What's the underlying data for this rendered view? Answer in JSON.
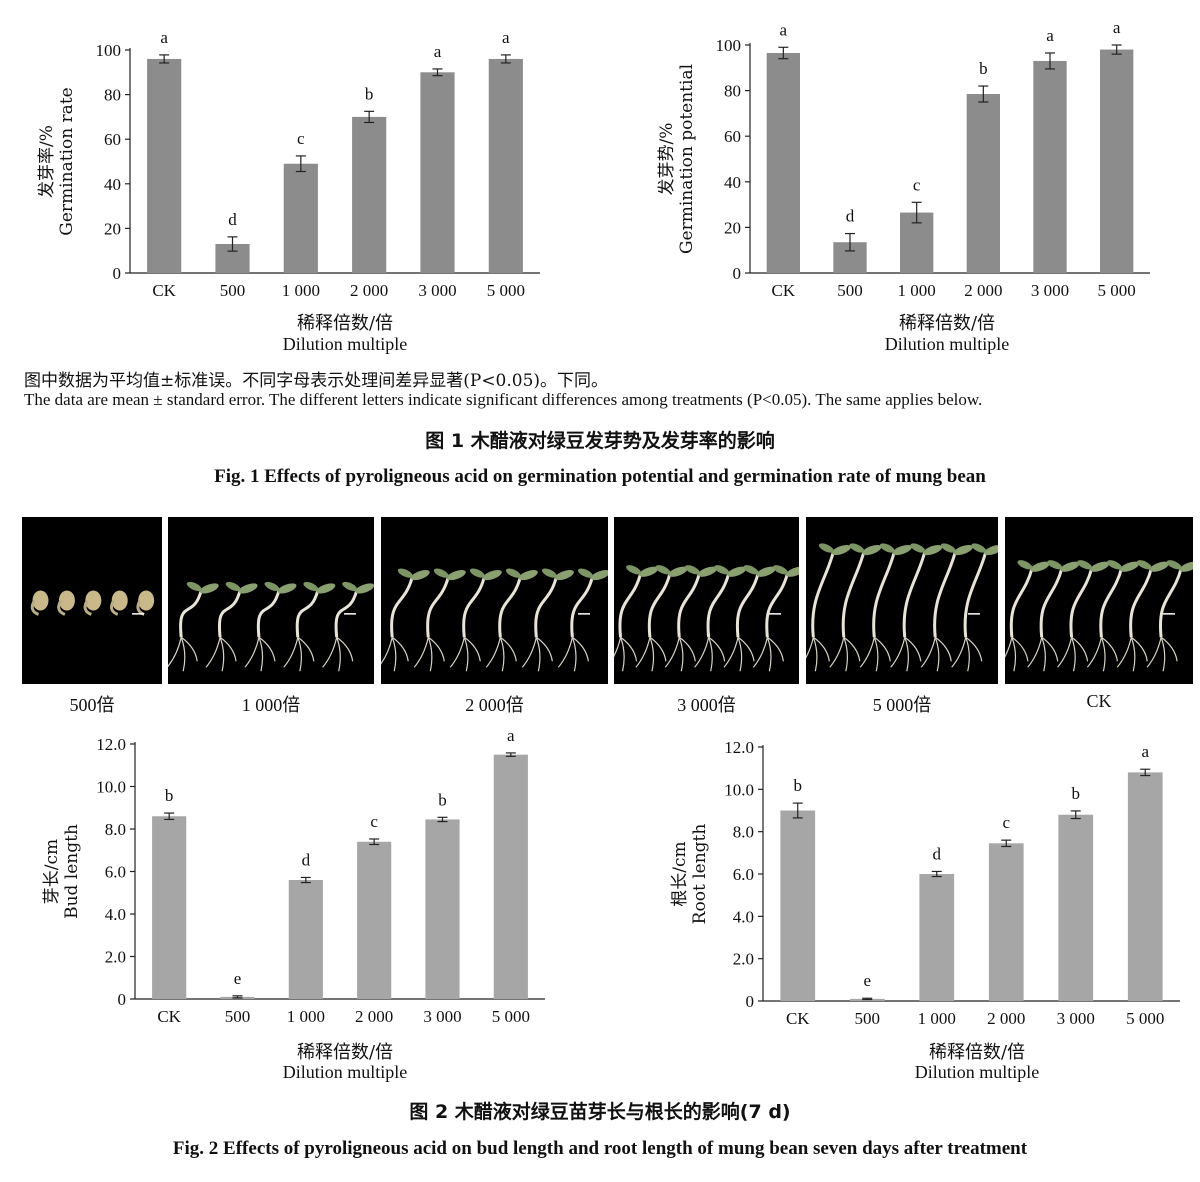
{
  "figure1": {
    "note_cn": "图中数据为平均值±标准误。不同字母表示处理间差异显著(P<0.05)。下同。",
    "note_en": "The data are mean ± standard error. The different letters indicate significant differences among treatments (P<0.05). The same applies below.",
    "caption_cn": "图 1   木醋液对绿豆发芽势及发芽率的影响",
    "caption_en": "Fig. 1   Effects of pyroligneous acid on germination potential and germination rate of mung bean"
  },
  "figure2": {
    "photo_labels": [
      "500倍",
      "1 000倍",
      "2 000倍",
      "3 000倍",
      "5 000倍",
      "CK"
    ],
    "caption_cn": "图 2   木醋液对绿豆苗芽长与根长的影响(7 d)",
    "caption_en": "Fig. 2   Effects of pyroligneous acid on bud length and root length of mung bean seven days after treatment"
  },
  "chart_data": [
    {
      "type": "bar",
      "categories": [
        "CK",
        "500",
        "1 000",
        "2 000",
        "3 000",
        "5 000"
      ],
      "values": [
        96,
        13,
        49,
        70,
        90,
        96
      ],
      "errors": [
        1.8,
        3.2,
        3.5,
        2.5,
        1.5,
        1.8
      ],
      "letters": [
        "a",
        "d",
        "c",
        "b",
        "a",
        "a"
      ],
      "ylabel_cn": "发芽率/%",
      "ylabel_en": "Germination rate",
      "xlabel_cn": "稀释倍数/倍",
      "xlabel_en": "Dilution multiple",
      "ylim": [
        0,
        100
      ],
      "yticks": [
        "0",
        "20",
        "40",
        "60",
        "80",
        "100"
      ],
      "grid": false,
      "color": "#8c8c8c"
    },
    {
      "type": "bar",
      "categories": [
        "CK",
        "500",
        "1 000",
        "2 000",
        "3 000",
        "5 000"
      ],
      "values": [
        96.5,
        13.5,
        26.5,
        78.5,
        93,
        98
      ],
      "errors": [
        2.5,
        3.8,
        4.5,
        3.5,
        3.5,
        2
      ],
      "letters": [
        "a",
        "d",
        "c",
        "b",
        "a",
        "a"
      ],
      "ylabel_cn": "发芽势/%",
      "ylabel_en": "Germination potential",
      "xlabel_cn": "稀释倍数/倍",
      "xlabel_en": "Dilution multiple",
      "ylim": [
        0,
        100
      ],
      "yticks": [
        "0",
        "20",
        "40",
        "60",
        "80",
        "100"
      ],
      "grid": false,
      "color": "#8c8c8c"
    },
    {
      "type": "bar",
      "categories": [
        "CK",
        "500",
        "1 000",
        "2 000",
        "3 000",
        "5 000"
      ],
      "values": [
        8.6,
        0.1,
        5.6,
        7.4,
        8.45,
        11.5
      ],
      "errors": [
        0.15,
        0.05,
        0.12,
        0.13,
        0.1,
        0.08
      ],
      "letters": [
        "b",
        "e",
        "d",
        "c",
        "b",
        "a"
      ],
      "ylabel_cn": "芽长/cm",
      "ylabel_en": "Bud length",
      "xlabel_cn": "稀释倍数/倍",
      "xlabel_en": "Dilution multiple",
      "ylim": [
        0,
        12
      ],
      "yticks": [
        "0",
        "2.0",
        "4.0",
        "6.0",
        "8.0",
        "10.0",
        "12.0"
      ],
      "grid": false,
      "color": "#a6a6a6"
    },
    {
      "type": "bar",
      "categories": [
        "CK",
        "500",
        "1 000",
        "2 000",
        "3 000",
        "5 000"
      ],
      "values": [
        9.0,
        0.1,
        6.0,
        7.45,
        8.8,
        10.8
      ],
      "errors": [
        0.35,
        0.03,
        0.12,
        0.15,
        0.18,
        0.15
      ],
      "letters": [
        "b",
        "e",
        "d",
        "c",
        "b",
        "a"
      ],
      "ylabel_cn": "根长/cm",
      "ylabel_en": "Root length",
      "xlabel_cn": "稀释倍数/倍",
      "xlabel_en": "Dilution multiple",
      "ylim": [
        0,
        12
      ],
      "yticks": [
        "0",
        "2.0",
        "4.0",
        "6.0",
        "8.0",
        "10.0",
        "12.0"
      ],
      "grid": false,
      "color": "#a6a6a6"
    }
  ]
}
